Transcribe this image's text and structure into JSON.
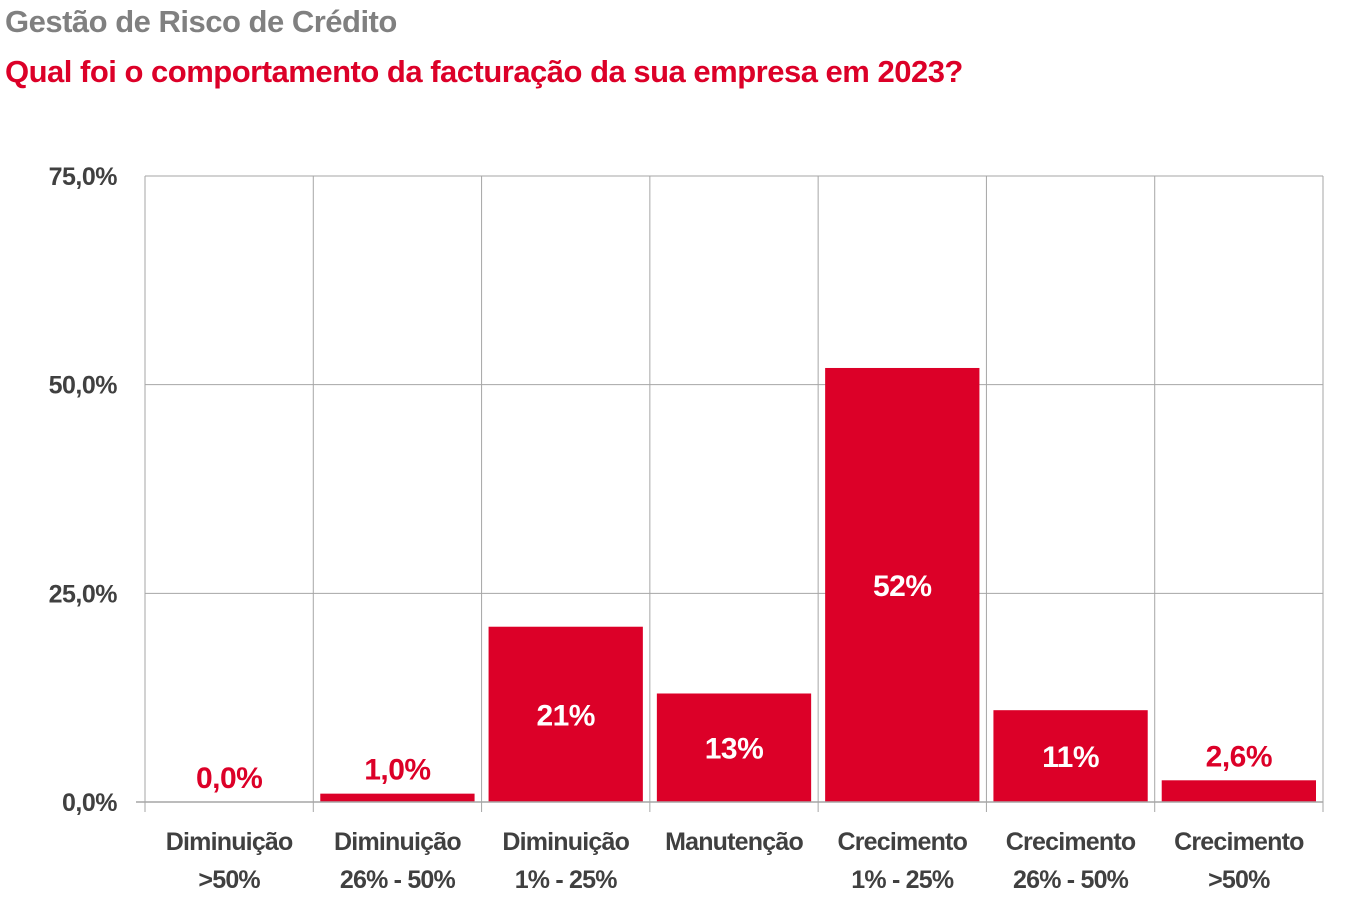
{
  "header": {
    "title": "Gestão de Risco de Crédito",
    "subtitle": "Qual foi o comportamento da facturação da sua empresa em 2023?"
  },
  "colors": {
    "bar": "#dc0028",
    "title": "#808080",
    "axis_text": "#404040",
    "grid": "#a6a6a6"
  },
  "chart_data": {
    "type": "bar",
    "title": "Qual foi o comportamento da facturação da sua empresa em 2023?",
    "categories": [
      [
        "Diminuição",
        ">50%"
      ],
      [
        "Diminuição",
        "26% - 50%"
      ],
      [
        "Diminuição",
        "1% - 25%"
      ],
      [
        "Manutenção",
        ""
      ],
      [
        "Crecimento",
        "1% - 25%"
      ],
      [
        "Crecimento",
        "26% - 50%"
      ],
      [
        "Crecimento",
        ">50%"
      ]
    ],
    "values": [
      0.0,
      1.0,
      21,
      13,
      52,
      11,
      2.6
    ],
    "data_labels": [
      "0,0%",
      "1,0%",
      "21%",
      "13%",
      "52%",
      "11%",
      "2,6%"
    ],
    "ylim": [
      0,
      75
    ],
    "yticks": [
      0,
      25,
      50,
      75
    ],
    "ytick_labels": [
      "0,0%",
      "25,0%",
      "50,0%",
      "75,0%"
    ],
    "grid": true,
    "xlabel": "",
    "ylabel": ""
  }
}
